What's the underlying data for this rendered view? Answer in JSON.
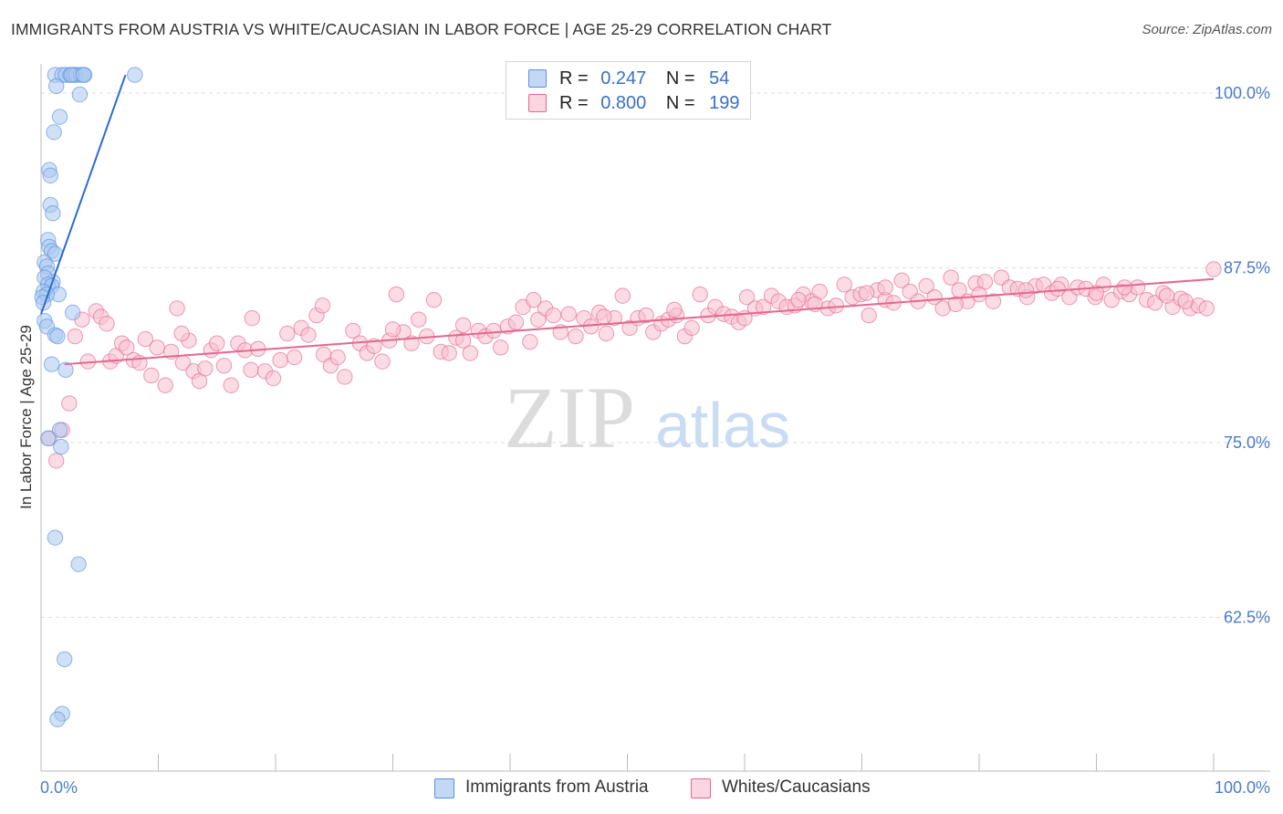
{
  "title": "IMMIGRANTS FROM AUSTRIA VS WHITE/CAUCASIAN IN LABOR FORCE | AGE 25-29 CORRELATION CHART",
  "source": "Source: ZipAtlas.com",
  "watermark": {
    "zip": "ZIP",
    "atlas": "atlas"
  },
  "legend": {
    "rows": [
      {
        "r_label": "R =",
        "r_value": "0.247",
        "n_label": "N =",
        "n_value": "54",
        "color": "#a9c8f0"
      },
      {
        "r_label": "R =",
        "r_value": "0.800",
        "n_label": "N =",
        "n_value": "199",
        "color": "#f7bfd0"
      }
    ]
  },
  "bottom_legend": {
    "items": [
      {
        "label": "Immigrants from Austria",
        "color": "#a9c8f0"
      },
      {
        "label": "Whites/Caucasians",
        "color": "#f7bfd0"
      }
    ]
  },
  "chart_data": {
    "type": "scatter",
    "title": "IMMIGRANTS FROM AUSTRIA VS WHITE/CAUCASIAN IN LABOR FORCE | AGE 25-29 CORRELATION CHART",
    "xlabel": "",
    "ylabel": "In Labor Force | Age 25-29",
    "xlim": [
      0,
      100
    ],
    "ylim": [
      51.5,
      101.5
    ],
    "x_tick_labels": [
      "0.0%",
      "100.0%"
    ],
    "y_tick_labels": [
      "62.5%",
      "75.0%",
      "87.5%",
      "100.0%"
    ],
    "y_ticks": [
      62.5,
      75.0,
      87.5,
      100.0
    ],
    "grid": "horizontal dashed",
    "legend_placement": "top-center",
    "series": [
      {
        "name": "Immigrants from Austria",
        "color": "#5b8fe0",
        "fill": "#a9c8f0",
        "trend": {
          "x": [
            0.0,
            7.2
          ],
          "y": [
            84.2,
            101.3
          ]
        },
        "points": [
          [
            1.2,
            101.3
          ],
          [
            1.8,
            101.3
          ],
          [
            2.1,
            101.3
          ],
          [
            2.5,
            101.3
          ],
          [
            2.8,
            101.3
          ],
          [
            3.0,
            101.3
          ],
          [
            3.4,
            101.3
          ],
          [
            3.7,
            101.3
          ],
          [
            2.6,
            101.3
          ],
          [
            3.6,
            101.3
          ],
          [
            8.0,
            101.3
          ],
          [
            1.3,
            100.5
          ],
          [
            3.3,
            99.9
          ],
          [
            1.6,
            98.3
          ],
          [
            1.1,
            97.2
          ],
          [
            0.7,
            94.5
          ],
          [
            0.8,
            94.1
          ],
          [
            0.8,
            92.0
          ],
          [
            1.0,
            91.4
          ],
          [
            0.6,
            89.5
          ],
          [
            0.7,
            89.0
          ],
          [
            0.9,
            88.7
          ],
          [
            1.2,
            88.5
          ],
          [
            0.3,
            87.9
          ],
          [
            0.5,
            87.6
          ],
          [
            0.6,
            87.1
          ],
          [
            1.0,
            86.5
          ],
          [
            0.3,
            86.8
          ],
          [
            0.6,
            86.3
          ],
          [
            0.9,
            86.2
          ],
          [
            0.2,
            85.8
          ],
          [
            1.5,
            85.6
          ],
          [
            0.5,
            85.6
          ],
          [
            0.1,
            85.4
          ],
          [
            0.2,
            85.0
          ],
          [
            2.7,
            84.3
          ],
          [
            0.3,
            83.7
          ],
          [
            0.5,
            83.3
          ],
          [
            1.2,
            82.7
          ],
          [
            1.4,
            82.6
          ],
          [
            0.9,
            80.6
          ],
          [
            2.1,
            80.2
          ],
          [
            1.6,
            75.9
          ],
          [
            0.6,
            75.3
          ],
          [
            1.7,
            74.7
          ],
          [
            1.2,
            68.2
          ],
          [
            3.2,
            66.3
          ],
          [
            2.0,
            59.5
          ],
          [
            1.8,
            55.6
          ],
          [
            1.4,
            55.2
          ]
        ]
      },
      {
        "name": "Whites/Caucasians",
        "color": "#e5668f",
        "fill": "#f7bfd0",
        "trend": {
          "x": [
            2.0,
            100.0
          ],
          "y": [
            80.6,
            86.7
          ]
        },
        "points": [
          [
            0.7,
            75.3
          ],
          [
            1.3,
            73.7
          ],
          [
            1.8,
            75.9
          ],
          [
            2.4,
            77.8
          ],
          [
            2.9,
            82.6
          ],
          [
            3.5,
            83.8
          ],
          [
            4.0,
            80.8
          ],
          [
            4.7,
            84.4
          ],
          [
            5.1,
            84.0
          ],
          [
            5.6,
            83.5
          ],
          [
            5.9,
            80.8
          ],
          [
            6.4,
            81.2
          ],
          [
            6.9,
            82.1
          ],
          [
            7.3,
            81.8
          ],
          [
            7.9,
            80.9
          ],
          [
            8.4,
            80.7
          ],
          [
            8.9,
            82.4
          ],
          [
            9.4,
            79.8
          ],
          [
            9.9,
            81.8
          ],
          [
            10.6,
            79.1
          ],
          [
            11.1,
            81.5
          ],
          [
            11.6,
            84.6
          ],
          [
            12.1,
            80.7
          ],
          [
            12.6,
            82.3
          ],
          [
            13.0,
            80.1
          ],
          [
            13.5,
            79.4
          ],
          [
            14.0,
            80.3
          ],
          [
            14.5,
            81.6
          ],
          [
            15.0,
            82.1
          ],
          [
            15.6,
            80.5
          ],
          [
            16.2,
            79.1
          ],
          [
            16.8,
            82.1
          ],
          [
            17.4,
            81.6
          ],
          [
            17.9,
            80.2
          ],
          [
            18.5,
            81.7
          ],
          [
            19.1,
            80.1
          ],
          [
            19.8,
            79.6
          ],
          [
            20.4,
            80.9
          ],
          [
            21.0,
            82.8
          ],
          [
            21.6,
            81.1
          ],
          [
            22.2,
            83.2
          ],
          [
            22.8,
            82.7
          ],
          [
            23.5,
            84.1
          ],
          [
            24.1,
            81.3
          ],
          [
            24.7,
            80.5
          ],
          [
            25.3,
            81.1
          ],
          [
            25.9,
            79.7
          ],
          [
            26.6,
            83.0
          ],
          [
            27.2,
            82.1
          ],
          [
            27.8,
            81.4
          ],
          [
            28.4,
            81.9
          ],
          [
            29.1,
            80.8
          ],
          [
            29.7,
            82.3
          ],
          [
            30.3,
            85.6
          ],
          [
            30.9,
            82.9
          ],
          [
            31.6,
            82.1
          ],
          [
            32.2,
            83.8
          ],
          [
            32.9,
            82.6
          ],
          [
            33.5,
            85.2
          ],
          [
            34.1,
            81.5
          ],
          [
            34.8,
            81.4
          ],
          [
            35.4,
            82.5
          ],
          [
            36.0,
            83.4
          ],
          [
            36.6,
            81.4
          ],
          [
            37.3,
            83.0
          ],
          [
            37.9,
            82.6
          ],
          [
            38.6,
            83.0
          ],
          [
            39.2,
            81.8
          ],
          [
            39.8,
            83.3
          ],
          [
            40.5,
            83.6
          ],
          [
            41.1,
            84.7
          ],
          [
            41.7,
            82.2
          ],
          [
            42.4,
            83.8
          ],
          [
            43.0,
            84.6
          ],
          [
            43.7,
            84.1
          ],
          [
            44.3,
            82.9
          ],
          [
            45.0,
            84.2
          ],
          [
            45.6,
            82.6
          ],
          [
            46.3,
            83.9
          ],
          [
            46.9,
            83.3
          ],
          [
            47.6,
            84.3
          ],
          [
            48.2,
            82.8
          ],
          [
            48.9,
            83.9
          ],
          [
            49.6,
            85.5
          ],
          [
            50.2,
            83.2
          ],
          [
            50.9,
            83.9
          ],
          [
            51.6,
            84.1
          ],
          [
            52.2,
            82.9
          ],
          [
            52.9,
            83.5
          ],
          [
            53.5,
            83.8
          ],
          [
            54.2,
            84.1
          ],
          [
            54.9,
            82.6
          ],
          [
            55.5,
            83.2
          ],
          [
            56.2,
            85.6
          ],
          [
            56.9,
            84.1
          ],
          [
            57.5,
            84.7
          ],
          [
            58.2,
            84.2
          ],
          [
            58.9,
            84.0
          ],
          [
            59.5,
            83.6
          ],
          [
            60.2,
            85.4
          ],
          [
            60.9,
            84.6
          ],
          [
            61.6,
            84.7
          ],
          [
            62.3,
            85.5
          ],
          [
            62.9,
            85.1
          ],
          [
            63.6,
            84.7
          ],
          [
            64.3,
            84.8
          ],
          [
            65.0,
            85.6
          ],
          [
            65.7,
            85.1
          ],
          [
            66.4,
            85.8
          ],
          [
            67.1,
            84.6
          ],
          [
            67.8,
            84.8
          ],
          [
            68.5,
            86.3
          ],
          [
            69.2,
            85.4
          ],
          [
            69.9,
            85.6
          ],
          [
            70.6,
            84.1
          ],
          [
            71.3,
            85.9
          ],
          [
            72.0,
            85.2
          ],
          [
            72.7,
            85.0
          ],
          [
            73.4,
            86.6
          ],
          [
            74.1,
            85.8
          ],
          [
            74.8,
            85.1
          ],
          [
            75.5,
            86.2
          ],
          [
            76.2,
            85.4
          ],
          [
            76.9,
            84.6
          ],
          [
            77.6,
            86.8
          ],
          [
            78.3,
            85.9
          ],
          [
            79.0,
            85.1
          ],
          [
            79.7,
            86.4
          ],
          [
            80.5,
            86.5
          ],
          [
            81.2,
            85.1
          ],
          [
            81.9,
            86.8
          ],
          [
            82.6,
            86.1
          ],
          [
            83.3,
            86.0
          ],
          [
            84.1,
            85.4
          ],
          [
            84.8,
            86.2
          ],
          [
            85.5,
            86.3
          ],
          [
            86.2,
            85.7
          ],
          [
            87.0,
            86.3
          ],
          [
            87.7,
            85.4
          ],
          [
            88.4,
            86.1
          ],
          [
            89.1,
            86.0
          ],
          [
            89.9,
            85.4
          ],
          [
            90.6,
            86.3
          ],
          [
            91.3,
            85.2
          ],
          [
            92.1,
            85.8
          ],
          [
            92.8,
            85.6
          ],
          [
            93.5,
            86.1
          ],
          [
            94.3,
            85.2
          ],
          [
            95.0,
            85.0
          ],
          [
            95.7,
            85.7
          ],
          [
            96.5,
            84.7
          ],
          [
            97.2,
            85.3
          ],
          [
            98.0,
            84.6
          ],
          [
            98.7,
            84.8
          ],
          [
            99.4,
            84.6
          ],
          [
            100.0,
            87.4
          ],
          [
            12.0,
            82.8
          ],
          [
            18.0,
            83.9
          ],
          [
            24.0,
            84.8
          ],
          [
            30.0,
            83.1
          ],
          [
            36.0,
            82.3
          ],
          [
            42.0,
            85.2
          ],
          [
            48.0,
            84.0
          ],
          [
            54.0,
            84.5
          ],
          [
            60.0,
            83.9
          ],
          [
            66.0,
            84.9
          ],
          [
            72.0,
            86.1
          ],
          [
            78.0,
            84.9
          ],
          [
            84.0,
            85.9
          ],
          [
            90.0,
            85.7
          ],
          [
            96.0,
            85.5
          ],
          [
            64.6,
            85.2
          ],
          [
            70.4,
            85.7
          ],
          [
            80.0,
            85.6
          ],
          [
            86.7,
            86.0
          ],
          [
            92.4,
            86.1
          ],
          [
            97.6,
            85.1
          ]
        ]
      }
    ]
  }
}
